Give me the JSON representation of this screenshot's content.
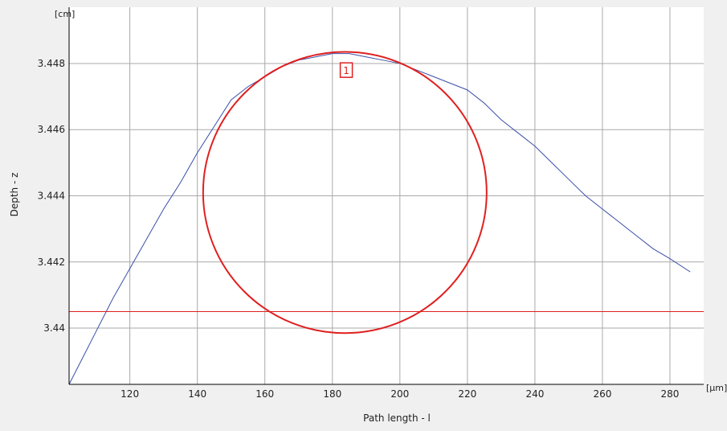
{
  "chart_data": {
    "type": "line",
    "title": "",
    "xlabel": "Path length - l",
    "ylabel": "Depth - z",
    "x_unit": "[µm]",
    "y_unit": "[cm]",
    "xlim": [
      102,
      290
    ],
    "ylim": [
      3.4383,
      3.4497
    ],
    "x_ticks": [
      120,
      140,
      160,
      180,
      200,
      220,
      240,
      260,
      280
    ],
    "y_ticks": [
      3.44,
      3.442,
      3.444,
      3.446,
      3.448
    ],
    "y_tick_labels": [
      "3.44",
      "3.442",
      "3.444",
      "3.446",
      "3.448"
    ],
    "grid": true,
    "series": [
      {
        "color": "#3a4fa8",
        "x": [
          102,
          106,
          110,
          115,
          120,
          125,
          130,
          135,
          140,
          145,
          150,
          155,
          160,
          165,
          170,
          175,
          180,
          185,
          190,
          195,
          200,
          205,
          210,
          215,
          220,
          225,
          230,
          235,
          240,
          245,
          250,
          255,
          260,
          265,
          270,
          275,
          280,
          286
        ],
        "y": [
          3.4383,
          3.4391,
          3.4399,
          3.4409,
          3.4418,
          3.4427,
          3.4436,
          3.4444,
          3.4453,
          3.4461,
          3.4469,
          3.4473,
          3.4476,
          3.4479,
          3.4481,
          3.4482,
          3.4483,
          3.4483,
          3.4482,
          3.4481,
          3.448,
          3.4478,
          3.4476,
          3.4474,
          3.4472,
          3.4468,
          3.4463,
          3.4459,
          3.4455,
          3.445,
          3.4445,
          3.444,
          3.4436,
          3.4432,
          3.4428,
          3.4424,
          3.4421,
          3.4417
        ]
      }
    ],
    "horizontal_line": {
      "y": 3.4405,
      "color": "#e02020"
    },
    "circle": {
      "cx": 183.7,
      "cy": 3.4441,
      "rx": 42,
      "ry": 0.00425,
      "color": "#e02020"
    },
    "marker": {
      "label": "1",
      "x": 184,
      "y": 3.4478,
      "color": "#e02020"
    }
  }
}
